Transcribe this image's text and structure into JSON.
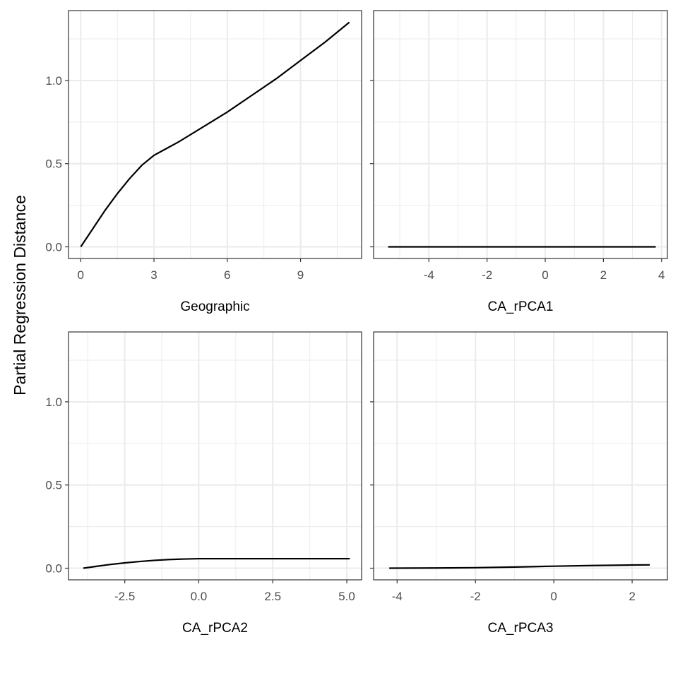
{
  "figure": {
    "ylabel": "Partial Regression Distance"
  },
  "chart_data": [
    {
      "type": "line",
      "xlabel": "Geographic",
      "xlim": [
        -0.5,
        11.5
      ],
      "ylim": [
        -0.07,
        1.42
      ],
      "xticks": [
        0,
        3,
        6,
        9
      ],
      "xtick_labels": [
        "0",
        "3",
        "6",
        "9"
      ],
      "yticks": [
        0.0,
        0.5,
        1.0
      ],
      "ytick_labels": [
        "0.0",
        "0.5",
        "1.0"
      ],
      "show_y_labels": true,
      "grid": true,
      "series": [
        {
          "x": [
            0,
            0.5,
            1,
            1.5,
            2,
            2.5,
            3,
            3.5,
            4,
            5,
            6,
            7,
            8,
            9,
            10,
            11
          ],
          "y": [
            0.0,
            0.11,
            0.22,
            0.32,
            0.41,
            0.49,
            0.55,
            0.59,
            0.63,
            0.72,
            0.81,
            0.91,
            1.01,
            1.12,
            1.23,
            1.35
          ]
        }
      ]
    },
    {
      "type": "line",
      "xlabel": "CA_rPCA1",
      "xlim": [
        -5.9,
        4.2
      ],
      "ylim": [
        -0.07,
        1.42
      ],
      "xticks": [
        -4,
        -2,
        0,
        2,
        4
      ],
      "xtick_labels": [
        "-4",
        "-2",
        "0",
        "2",
        "4"
      ],
      "yticks": [
        0.0,
        0.5,
        1.0
      ],
      "ytick_labels": [
        "0.0",
        "0.5",
        "1.0"
      ],
      "show_y_labels": false,
      "grid": true,
      "series": [
        {
          "x": [
            -5.4,
            3.8
          ],
          "y": [
            0.0,
            0.0
          ]
        }
      ]
    },
    {
      "type": "line",
      "xlabel": "CA_rPCA2",
      "xlim": [
        -4.4,
        5.5
      ],
      "ylim": [
        -0.07,
        1.42
      ],
      "xticks": [
        -2.5,
        0,
        2.5,
        5
      ],
      "xtick_labels": [
        "-2.5",
        "0.0",
        "2.5",
        "5.0"
      ],
      "yticks": [
        0.0,
        0.5,
        1.0
      ],
      "ytick_labels": [
        "0.0",
        "0.5",
        "1.0"
      ],
      "show_y_labels": true,
      "grid": true,
      "series": [
        {
          "x": [
            -3.9,
            -3.5,
            -3.0,
            -2.5,
            -2.0,
            -1.5,
            -1.0,
            -0.5,
            0,
            1,
            2,
            3,
            4,
            5.1
          ],
          "y": [
            0.0,
            0.01,
            0.022,
            0.032,
            0.04,
            0.047,
            0.052,
            0.055,
            0.057,
            0.057,
            0.057,
            0.057,
            0.057,
            0.057
          ]
        }
      ]
    },
    {
      "type": "line",
      "xlabel": "CA_rPCA3",
      "xlim": [
        -4.6,
        2.9
      ],
      "ylim": [
        -0.07,
        1.42
      ],
      "xticks": [
        -4,
        -2,
        0,
        2
      ],
      "xtick_labels": [
        "-4",
        "-2",
        "0",
        "2"
      ],
      "yticks": [
        0.0,
        0.5,
        1.0
      ],
      "ytick_labels": [
        "0.0",
        "0.5",
        "1.0"
      ],
      "show_y_labels": false,
      "grid": true,
      "series": [
        {
          "x": [
            -4.2,
            -3,
            -2,
            -1,
            0,
            1,
            2,
            2.45
          ],
          "y": [
            0.0,
            0.001,
            0.003,
            0.007,
            0.012,
            0.016,
            0.019,
            0.02
          ]
        }
      ]
    }
  ]
}
